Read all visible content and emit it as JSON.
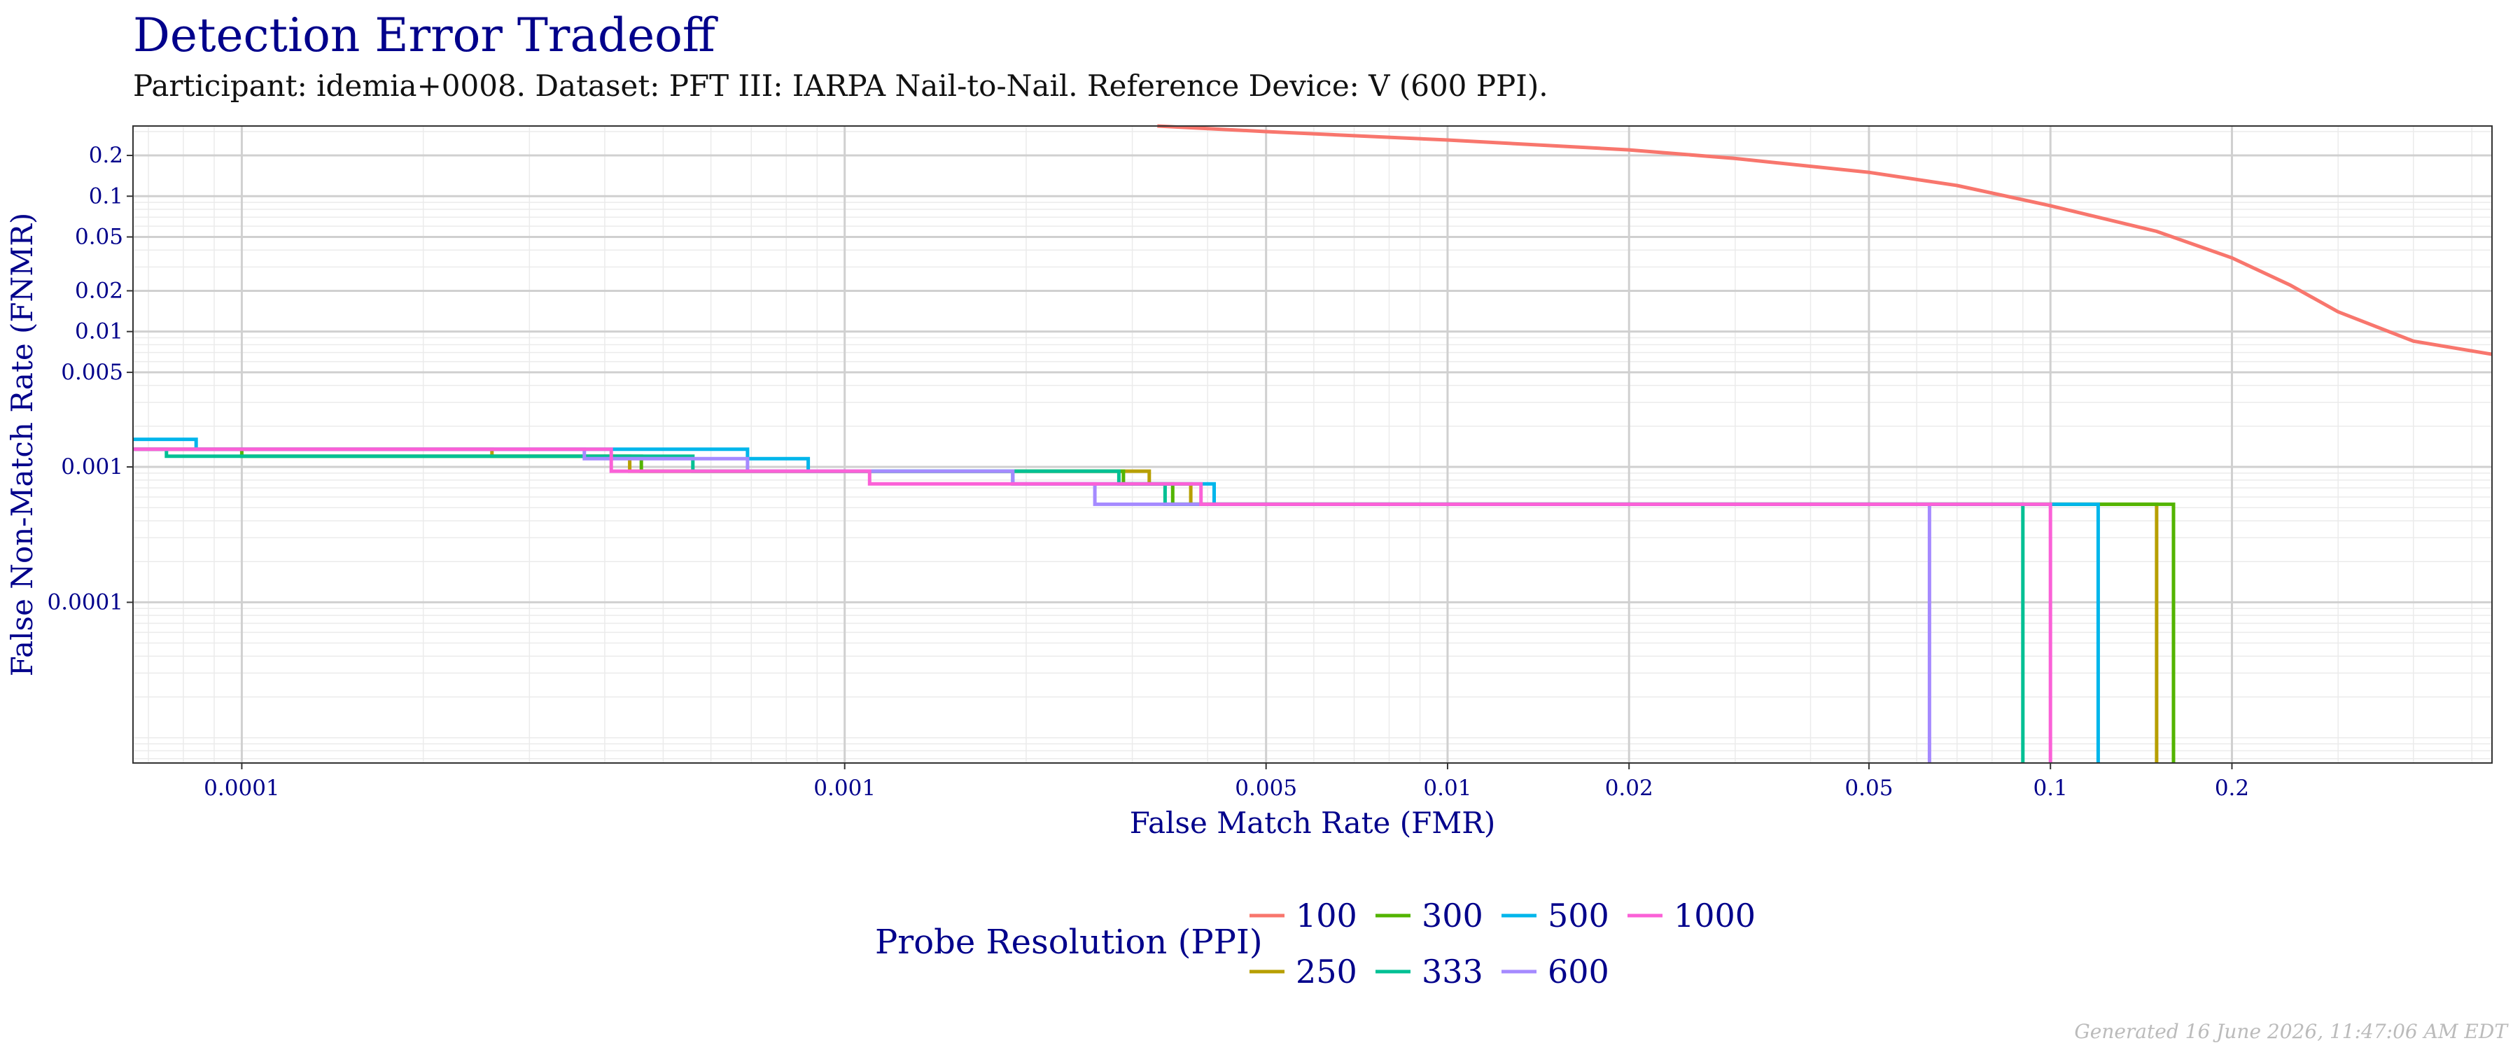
{
  "title": "Detection Error Tradeoff",
  "subtitle": "Participant: idemia+0008. Dataset: PFT III: IARPA Nail-to-Nail. Reference Device: V (600 PPI).",
  "footer": "Generated 16 June 2026, 11:47:06 AM EDT",
  "chart_data": {
    "type": "line",
    "title": "Detection Error Tradeoff",
    "xlabel": "False Match Rate (FMR)",
    "ylabel": "False Non-Match Rate (FNMR)",
    "x_scale": "log",
    "y_scale": "log",
    "xlim": [
      6.6e-05,
      0.54
    ],
    "ylim": [
      6.5e-06,
      0.33
    ],
    "x_ticks": [
      {
        "value": 0.0001,
        "label": "0.0001"
      },
      {
        "value": 0.001,
        "label": "0.001"
      },
      {
        "value": 0.005,
        "label": "0.005"
      },
      {
        "value": 0.01,
        "label": "0.01"
      },
      {
        "value": 0.02,
        "label": "0.02"
      },
      {
        "value": 0.05,
        "label": "0.05"
      },
      {
        "value": 0.1,
        "label": "0.1"
      },
      {
        "value": 0.2,
        "label": "0.2"
      }
    ],
    "y_ticks": [
      {
        "value": 0.0001,
        "label": "0.0001"
      },
      {
        "value": 0.001,
        "label": "0.001"
      },
      {
        "value": 0.005,
        "label": "0.005"
      },
      {
        "value": 0.01,
        "label": "0.01"
      },
      {
        "value": 0.02,
        "label": "0.02"
      },
      {
        "value": 0.05,
        "label": "0.05"
      },
      {
        "value": 0.1,
        "label": "0.1"
      },
      {
        "value": 0.2,
        "label": "0.2"
      }
    ],
    "grid": true,
    "legend_title": "Probe Resolution (PPI)",
    "legend_position": "bottom",
    "series": [
      {
        "name": "100",
        "color": "#F8766D",
        "points": [
          [
            0.0033,
            0.33
          ],
          [
            0.005,
            0.3
          ],
          [
            0.01,
            0.26
          ],
          [
            0.02,
            0.22
          ],
          [
            0.03,
            0.19
          ],
          [
            0.05,
            0.15
          ],
          [
            0.07,
            0.12
          ],
          [
            0.1,
            0.085
          ],
          [
            0.15,
            0.055
          ],
          [
            0.2,
            0.035
          ],
          [
            0.25,
            0.022
          ],
          [
            0.3,
            0.014
          ],
          [
            0.4,
            0.0085
          ],
          [
            0.54,
            0.0068
          ]
        ]
      },
      {
        "name": "250",
        "color": "#B79F00",
        "points": [
          [
            6.6e-05,
            0.00135
          ],
          [
            0.00026,
            0.00135
          ],
          [
            0.00026,
            0.0012
          ],
          [
            0.00044,
            0.0012
          ],
          [
            0.00044,
            0.00093
          ],
          [
            0.0032,
            0.00093
          ],
          [
            0.0032,
            0.00075
          ],
          [
            0.00375,
            0.00075
          ],
          [
            0.00375,
            0.00053
          ],
          [
            0.15,
            0.00053
          ],
          [
            0.15,
            6.5e-06
          ]
        ]
      },
      {
        "name": "300",
        "color": "#53B400",
        "points": [
          [
            6.6e-05,
            0.00135
          ],
          [
            0.0001,
            0.00135
          ],
          [
            0.0001,
            0.0012
          ],
          [
            0.00046,
            0.0012
          ],
          [
            0.00046,
            0.00093
          ],
          [
            0.0029,
            0.00093
          ],
          [
            0.0029,
            0.00075
          ],
          [
            0.0035,
            0.00075
          ],
          [
            0.0035,
            0.00053
          ],
          [
            0.16,
            0.00053
          ],
          [
            0.16,
            6.5e-06
          ]
        ]
      },
      {
        "name": "333",
        "color": "#00C094",
        "points": [
          [
            6.6e-05,
            0.00135
          ],
          [
            7.5e-05,
            0.00135
          ],
          [
            7.5e-05,
            0.0012
          ],
          [
            0.00056,
            0.0012
          ],
          [
            0.00056,
            0.00093
          ],
          [
            0.00285,
            0.00093
          ],
          [
            0.00285,
            0.00075
          ],
          [
            0.0034,
            0.00075
          ],
          [
            0.0034,
            0.00053
          ],
          [
            0.09,
            0.00053
          ],
          [
            0.09,
            6.5e-06
          ]
        ]
      },
      {
        "name": "500",
        "color": "#00B6EB",
        "points": [
          [
            6.6e-05,
            0.0016
          ],
          [
            8.4e-05,
            0.0016
          ],
          [
            8.4e-05,
            0.00135
          ],
          [
            0.00069,
            0.00135
          ],
          [
            0.00069,
            0.00115
          ],
          [
            0.00087,
            0.00115
          ],
          [
            0.00087,
            0.00093
          ],
          [
            0.0019,
            0.00093
          ],
          [
            0.0019,
            0.00075
          ],
          [
            0.0041,
            0.00075
          ],
          [
            0.0041,
            0.00053
          ],
          [
            0.12,
            0.00053
          ],
          [
            0.12,
            6.5e-06
          ]
        ]
      },
      {
        "name": "600",
        "color": "#A58AFF",
        "points": [
          [
            6.6e-05,
            0.00135
          ],
          [
            0.00037,
            0.00135
          ],
          [
            0.00037,
            0.00115
          ],
          [
            0.00069,
            0.00115
          ],
          [
            0.00069,
            0.00093
          ],
          [
            0.0019,
            0.00093
          ],
          [
            0.0019,
            0.00075
          ],
          [
            0.0026,
            0.00075
          ],
          [
            0.0026,
            0.00053
          ],
          [
            0.063,
            0.00053
          ],
          [
            0.063,
            6.5e-06
          ]
        ]
      },
      {
        "name": "1000",
        "color": "#FB61D7",
        "points": [
          [
            6.6e-05,
            0.00135
          ],
          [
            0.00041,
            0.00135
          ],
          [
            0.00041,
            0.00093
          ],
          [
            0.0011,
            0.00093
          ],
          [
            0.0011,
            0.00075
          ],
          [
            0.0039,
            0.00075
          ],
          [
            0.0039,
            0.00053
          ],
          [
            0.1,
            0.00053
          ],
          [
            0.1,
            6.5e-06
          ]
        ]
      }
    ]
  }
}
